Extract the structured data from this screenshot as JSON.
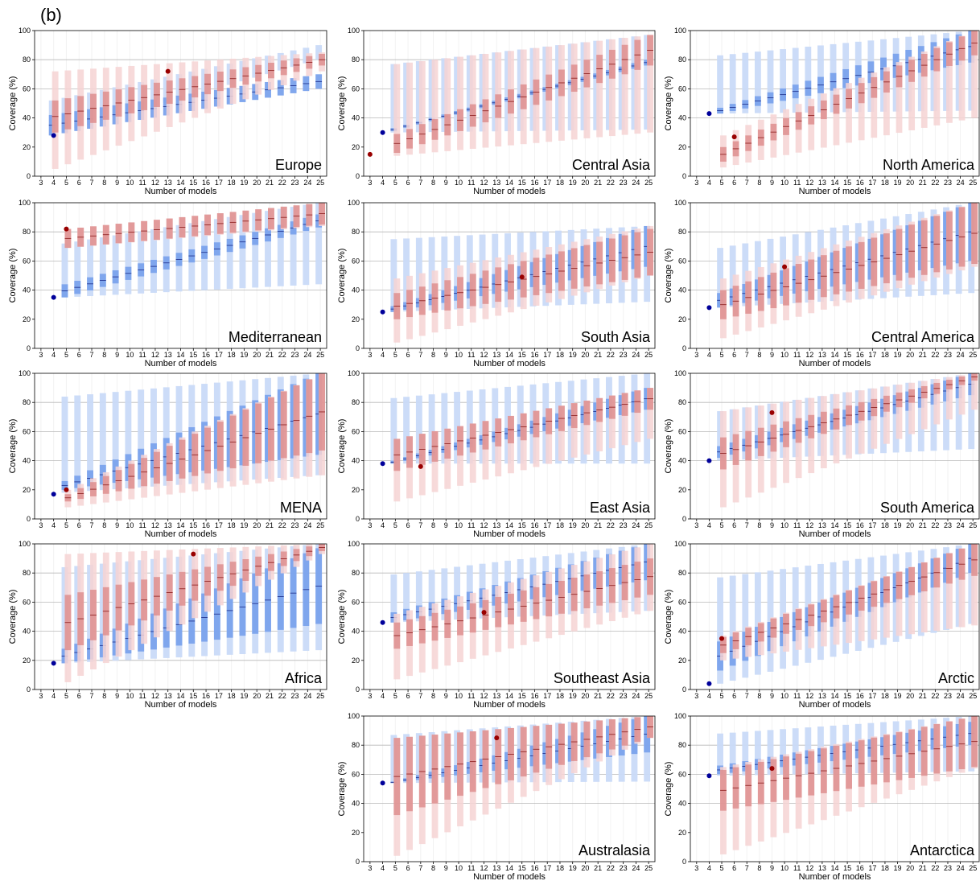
{
  "figure_label": "(b)",
  "colors": {
    "blue_light": "#c9daf8",
    "blue_dark": "#7aa2ec",
    "red_light": "#f6d3d3",
    "red_dark": "#dc8a8a",
    "dot_blue": "#00009a",
    "dot_red": "#990000",
    "median_blue": "#1a2a88",
    "median_red": "#8a1a1a"
  },
  "chart_data": [
    {
      "type": "range-bar",
      "region": "Europe",
      "xlabel": "Number of models",
      "ylabel": "Coverage (%)",
      "x_ticks": [
        3,
        4,
        5,
        6,
        7,
        8,
        9,
        10,
        11,
        12,
        13,
        14,
        15,
        16,
        17,
        18,
        19,
        20,
        21,
        22,
        23,
        24,
        25
      ],
      "ylim": [
        0,
        100
      ],
      "y_ticks": [
        0,
        20,
        40,
        60,
        80,
        100
      ],
      "gridlines_y": [
        60,
        80
      ],
      "blue_dot": {
        "x": 4,
        "y": 28
      },
      "red_dot": {
        "x": 13,
        "y": 72
      },
      "blue_start": 4,
      "blue_base": [
        [
          28,
          52,
          28,
          42
        ],
        [
          80,
          90,
          60,
          70
        ]
      ],
      "red_base": [
        [
          5,
          72,
          30,
          52
        ],
        [
          72,
          85,
          76,
          84
        ]
      ]
    },
    {
      "type": "range-bar",
      "region": "Central Asia",
      "xlabel": "Number of models",
      "ylabel": "Coverage (%)",
      "x_ticks": [
        3,
        4,
        5,
        6,
        7,
        8,
        9,
        10,
        11,
        12,
        13,
        14,
        15,
        16,
        17,
        18,
        19,
        20,
        21,
        22,
        23,
        24,
        25
      ],
      "ylim": [
        0,
        100
      ],
      "y_ticks": [
        0,
        20,
        40,
        60,
        80,
        100
      ],
      "gridlines_y": [
        40,
        60,
        80
      ],
      "blue_dot": {
        "x": 4,
        "y": 30
      },
      "red_dot": {
        "x": 3,
        "y": 15
      },
      "blue_start": 5,
      "blue_base": [
        [
          30,
          77,
          31,
          33
        ],
        [
          32,
          97,
          76,
          80
        ]
      ],
      "red_base": [
        [
          14,
          77,
          16,
          29
        ],
        [
          30,
          97,
          76,
          97
        ]
      ]
    },
    {
      "type": "range-bar",
      "region": "North America",
      "xlabel": "Number of models",
      "ylabel": "Coverage (%)",
      "x_ticks": [
        3,
        4,
        5,
        6,
        7,
        8,
        9,
        10,
        11,
        12,
        13,
        14,
        15,
        16,
        17,
        18,
        19,
        20,
        21,
        22,
        23,
        24,
        25
      ],
      "ylim": [
        0,
        100
      ],
      "y_ticks": [
        0,
        20,
        40,
        60,
        80,
        100
      ],
      "gridlines_y": [
        40,
        60,
        80
      ],
      "blue_dot": {
        "x": 4,
        "y": 43
      },
      "red_dot": {
        "x": 6,
        "y": 27
      },
      "blue_start": 5,
      "blue_base": [
        [
          43,
          83,
          43,
          47
        ],
        [
          45,
          100,
          78,
          100
        ]
      ],
      "red_base": [
        [
          6,
          28,
          10,
          20
        ],
        [
          40,
          100,
          83,
          100
        ]
      ]
    },
    {
      "type": "range-bar",
      "region": "Mediterranean",
      "xlabel": "Number of models",
      "ylabel": "Coverage (%)",
      "x_ticks": [
        3,
        4,
        5,
        6,
        7,
        8,
        9,
        10,
        11,
        12,
        13,
        14,
        15,
        16,
        17,
        18,
        19,
        20,
        21,
        22,
        23,
        24,
        25
      ],
      "ylim": [
        0,
        100
      ],
      "y_ticks": [
        0,
        20,
        40,
        60,
        80,
        100
      ],
      "gridlines_y": [
        40,
        60,
        80
      ],
      "blue_dot": {
        "x": 4,
        "y": 35
      },
      "red_dot": {
        "x": 5,
        "y": 82
      },
      "blue_start": 5,
      "blue_base": [
        [
          35,
          72,
          35,
          44
        ],
        [
          44,
          100,
          83,
          92
        ]
      ],
      "red_base": [
        [
          69,
          82,
          69,
          82
        ],
        [
          84,
          100,
          85,
          100
        ]
      ]
    },
    {
      "type": "range-bar",
      "region": "South Asia",
      "xlabel": "Number of models",
      "ylabel": "Coverage (%)",
      "x_ticks": [
        3,
        4,
        5,
        6,
        7,
        8,
        9,
        10,
        11,
        12,
        13,
        14,
        15,
        16,
        17,
        18,
        19,
        20,
        21,
        22,
        23,
        24,
        25
      ],
      "ylim": [
        0,
        100
      ],
      "y_ticks": [
        0,
        20,
        40,
        60,
        80,
        100
      ],
      "gridlines_y": [
        40,
        60,
        80
      ],
      "blue_dot": {
        "x": 4,
        "y": 25
      },
      "red_dot": {
        "x": 15,
        "y": 49
      },
      "blue_start": 5,
      "blue_base": [
        [
          25,
          75,
          25,
          29
        ],
        [
          32,
          84,
          56,
          84
        ]
      ],
      "red_base": [
        [
          4,
          48,
          20,
          38
        ],
        [
          50,
          84,
          50,
          82
        ]
      ]
    },
    {
      "type": "range-bar",
      "region": "Central America",
      "xlabel": "Number of models",
      "ylabel": "Coverage (%)",
      "x_ticks": [
        3,
        4,
        5,
        6,
        7,
        8,
        9,
        10,
        11,
        12,
        13,
        14,
        15,
        16,
        17,
        18,
        19,
        20,
        21,
        22,
        23,
        24,
        25
      ],
      "ylim": [
        0,
        100
      ],
      "y_ticks": [
        0,
        20,
        40,
        60,
        80,
        100
      ],
      "gridlines_y": [
        40,
        60,
        80
      ],
      "blue_dot": {
        "x": 4,
        "y": 28
      },
      "red_dot": {
        "x": 10,
        "y": 56
      },
      "blue_start": 5,
      "blue_base": [
        [
          28,
          69,
          28,
          38
        ],
        [
          38,
          100,
          60,
          100
        ]
      ],
      "red_base": [
        [
          7,
          48,
          20,
          40
        ],
        [
          56,
          100,
          58,
          100
        ]
      ]
    },
    {
      "type": "range-bar",
      "region": "MENA",
      "xlabel": "Number of models",
      "ylabel": "Coverage (%)",
      "x_ticks": [
        3,
        4,
        5,
        6,
        7,
        8,
        9,
        10,
        11,
        12,
        13,
        14,
        15,
        16,
        17,
        18,
        19,
        20,
        21,
        22,
        23,
        24,
        25
      ],
      "ylim": [
        0,
        100
      ],
      "y_ticks": [
        0,
        20,
        40,
        60,
        80,
        100
      ],
      "gridlines_y": [
        40,
        60,
        80
      ],
      "blue_dot": {
        "x": 4,
        "y": 17
      },
      "red_dot": {
        "x": 5,
        "y": 20
      },
      "blue_start": 5,
      "blue_base": [
        [
          18,
          84,
          20,
          26
        ],
        [
          30,
          100,
          44,
          100
        ]
      ],
      "red_base": [
        [
          8,
          20,
          12,
          17
        ],
        [
          30,
          100,
          47,
          100
        ]
      ]
    },
    {
      "type": "range-bar",
      "region": "East Asia",
      "xlabel": "Number of models",
      "ylabel": "Coverage (%)",
      "x_ticks": [
        3,
        4,
        5,
        6,
        7,
        8,
        9,
        10,
        11,
        12,
        13,
        14,
        15,
        16,
        17,
        18,
        19,
        20,
        21,
        22,
        23,
        24,
        25
      ],
      "ylim": [
        0,
        100
      ],
      "y_ticks": [
        0,
        20,
        40,
        60,
        80,
        100
      ],
      "gridlines_y": [
        40,
        60,
        80
      ],
      "blue_dot": {
        "x": 4,
        "y": 38
      },
      "red_dot": {
        "x": 7,
        "y": 36
      },
      "blue_start": 5,
      "blue_base": [
        [
          38,
          83,
          38,
          40
        ],
        [
          38,
          100,
          75,
          90
        ]
      ],
      "red_base": [
        [
          12,
          55,
          33,
          55
        ],
        [
          55,
          90,
          75,
          90
        ]
      ]
    },
    {
      "type": "range-bar",
      "region": "South America",
      "xlabel": "Number of models",
      "ylabel": "Coverage (%)",
      "x_ticks": [
        3,
        4,
        5,
        6,
        7,
        8,
        9,
        10,
        11,
        12,
        13,
        14,
        15,
        16,
        17,
        18,
        19,
        20,
        21,
        22,
        23,
        24,
        25
      ],
      "ylim": [
        0,
        100
      ],
      "y_ticks": [
        0,
        20,
        40,
        60,
        80,
        100
      ],
      "gridlines_y": [
        40,
        60,
        80
      ],
      "blue_dot": {
        "x": 4,
        "y": 40
      },
      "red_dot": {
        "x": 9,
        "y": 73
      },
      "blue_start": 5,
      "blue_base": [
        [
          40,
          74,
          42,
          50
        ],
        [
          48,
          100,
          85,
          100
        ]
      ],
      "red_base": [
        [
          8,
          74,
          34,
          56
        ],
        [
          75,
          100,
          95,
          100
        ]
      ]
    },
    {
      "type": "range-bar",
      "region": "Africa",
      "xlabel": "Number of models",
      "ylabel": "Coverage (%)",
      "x_ticks": [
        3,
        4,
        5,
        6,
        7,
        8,
        9,
        10,
        11,
        12,
        13,
        14,
        15,
        16,
        17,
        18,
        19,
        20,
        21,
        22,
        23,
        24,
        25
      ],
      "ylim": [
        0,
        100
      ],
      "y_ticks": [
        0,
        20,
        40,
        60,
        80,
        100
      ],
      "gridlines_y": [
        20,
        40,
        60,
        80
      ],
      "blue_dot": {
        "x": 4,
        "y": 18
      },
      "red_dot": {
        "x": 15,
        "y": 93
      },
      "blue_start": 5,
      "blue_base": [
        [
          18,
          84,
          18,
          28
        ],
        [
          27,
          100,
          45,
          97
        ]
      ],
      "red_base": [
        [
          5,
          93,
          27,
          65
        ],
        [
          93,
          100,
          95,
          100
        ]
      ]
    },
    {
      "type": "range-bar",
      "region": "Southeast Asia",
      "xlabel": "Number of models",
      "ylabel": "Coverage (%)",
      "x_ticks": [
        3,
        4,
        5,
        6,
        7,
        8,
        9,
        10,
        11,
        12,
        13,
        14,
        15,
        16,
        17,
        18,
        19,
        20,
        21,
        22,
        23,
        24,
        25
      ],
      "ylim": [
        0,
        100
      ],
      "y_ticks": [
        0,
        20,
        40,
        60,
        80,
        100
      ],
      "gridlines_y": [
        40,
        60,
        80
      ],
      "blue_dot": {
        "x": 4,
        "y": 46
      },
      "red_dot": {
        "x": 12,
        "y": 53
      },
      "blue_start": 5,
      "blue_base": [
        [
          46,
          79,
          46,
          53
        ],
        [
          54,
          100,
          75,
          100
        ]
      ],
      "red_base": [
        [
          7,
          52,
          28,
          46
        ],
        [
          54,
          100,
          65,
          90
        ]
      ]
    },
    {
      "type": "range-bar",
      "region": "Arctic",
      "xlabel": "Number of models",
      "ylabel": "Coverage (%)",
      "x_ticks": [
        3,
        4,
        5,
        6,
        7,
        8,
        9,
        10,
        11,
        12,
        13,
        14,
        15,
        16,
        17,
        18,
        19,
        20,
        21,
        22,
        23,
        24,
        25
      ],
      "ylim": [
        0,
        100
      ],
      "y_ticks": [
        0,
        20,
        40,
        60,
        80,
        100
      ],
      "gridlines_y": [
        40,
        60,
        80
      ],
      "blue_dot": {
        "x": 4,
        "y": 4
      },
      "red_dot": {
        "x": 5,
        "y": 35
      },
      "blue_start": 5,
      "blue_base": [
        [
          4,
          77,
          13,
          33
        ],
        [
          45,
          100,
          80,
          100
        ]
      ],
      "red_base": [
        [
          20,
          37,
          25,
          36
        ],
        [
          44,
          100,
          78,
          100
        ]
      ]
    },
    {
      "type": "range-bar",
      "region": "Australasia",
      "xlabel": "Number of models",
      "ylabel": "Coverage (%)",
      "x_ticks": [
        3,
        4,
        5,
        6,
        7,
        8,
        9,
        10,
        11,
        12,
        13,
        14,
        15,
        16,
        17,
        18,
        19,
        20,
        21,
        22,
        23,
        24,
        25
      ],
      "ylim": [
        0,
        100
      ],
      "y_ticks": [
        0,
        20,
        40,
        60,
        80,
        100
      ],
      "gridlines_y": [
        40,
        60,
        80
      ],
      "blue_dot": {
        "x": 4,
        "y": 54
      },
      "red_dot": {
        "x": 13,
        "y": 85
      },
      "blue_start": 5,
      "blue_base": [
        [
          54,
          87,
          54,
          55
        ],
        [
          55,
          100,
          75,
          100
        ]
      ],
      "red_base": [
        [
          4,
          85,
          32,
          85
        ],
        [
          85,
          100,
          85,
          100
        ]
      ]
    },
    {
      "type": "range-bar",
      "region": "Antarctica",
      "xlabel": "Number of models",
      "ylabel": "Coverage (%)",
      "x_ticks": [
        3,
        4,
        5,
        6,
        7,
        8,
        9,
        10,
        11,
        12,
        13,
        14,
        15,
        16,
        17,
        18,
        19,
        20,
        21,
        22,
        23,
        24,
        25
      ],
      "ylim": [
        0,
        100
      ],
      "y_ticks": [
        0,
        20,
        40,
        60,
        80,
        100
      ],
      "gridlines_y": [
        40,
        60,
        80
      ],
      "blue_dot": {
        "x": 4,
        "y": 59
      },
      "red_dot": {
        "x": 9,
        "y": 64
      },
      "blue_start": 5,
      "blue_base": [
        [
          59,
          88,
          60,
          66
        ],
        [
          62,
          100,
          80,
          96
        ]
      ],
      "red_base": [
        [
          5,
          65,
          35,
          63
        ],
        [
          64,
          100,
          65,
          100
        ]
      ]
    }
  ]
}
